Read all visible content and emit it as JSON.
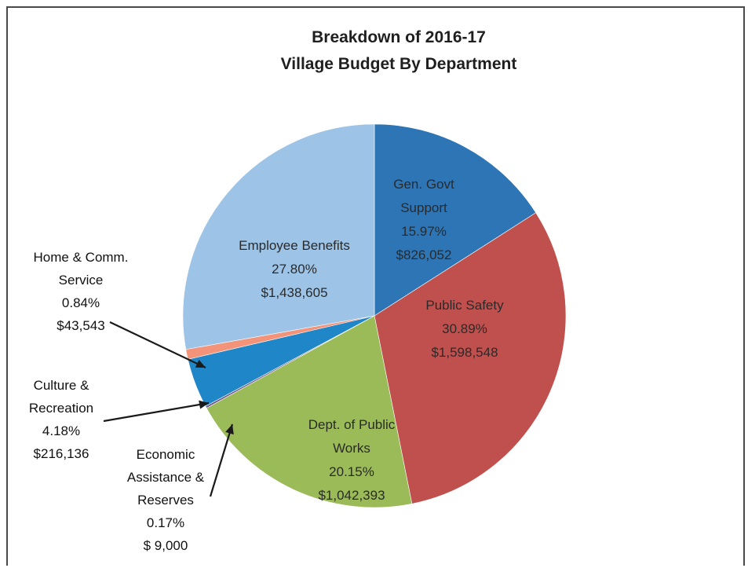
{
  "chart_data": {
    "type": "pie",
    "title": [
      "Breakdown of 2016-17",
      "Village Budget By Department"
    ],
    "slices": [
      {
        "name": "Gen. Govt Support",
        "label_lines": [
          "Gen. Govt",
          "Support"
        ],
        "percent": "15.97%",
        "amount": "$826,052",
        "value": 826052,
        "color": "#2e75b6",
        "label_placement": "inside"
      },
      {
        "name": "Public Safety",
        "label_lines": [
          "Public Safety"
        ],
        "percent": "30.89%",
        "amount": "$1,598,548",
        "value": 1598548,
        "color": "#c0504d",
        "label_placement": "inside"
      },
      {
        "name": "Dept. of Public Works",
        "label_lines": [
          "Dept. of Public",
          "Works"
        ],
        "percent": "20.15%",
        "amount": "$1,042,393",
        "value": 1042393,
        "color": "#9bbb59",
        "label_placement": "inside"
      },
      {
        "name": "Economic Assistance & Reserves",
        "label_lines": [
          "Economic",
          "Assistance &",
          "Reserves"
        ],
        "percent": "0.17%",
        "amount": "$ 9,000",
        "value": 9000,
        "color": "#6f5a8c",
        "label_placement": "outside-arrow"
      },
      {
        "name": "Culture & Recreation",
        "label_lines": [
          "Culture &",
          "Recreation"
        ],
        "percent": "4.18%",
        "amount": "$216,136",
        "value": 216136,
        "color": "#1f86c8",
        "label_placement": "outside-arrow"
      },
      {
        "name": "Home & Comm. Service",
        "label_lines": [
          "Home & Comm.",
          "Service"
        ],
        "percent": "0.84%",
        "amount": "$43,543",
        "value": 43543,
        "color": "#f2937a",
        "label_placement": "outside-arrow"
      },
      {
        "name": "Employee Benefits",
        "label_lines": [
          "Employee Benefits"
        ],
        "percent": "27.80%",
        "amount": "$1,438,605",
        "value": 1438605,
        "color": "#9dc3e6",
        "label_placement": "inside"
      }
    ]
  }
}
